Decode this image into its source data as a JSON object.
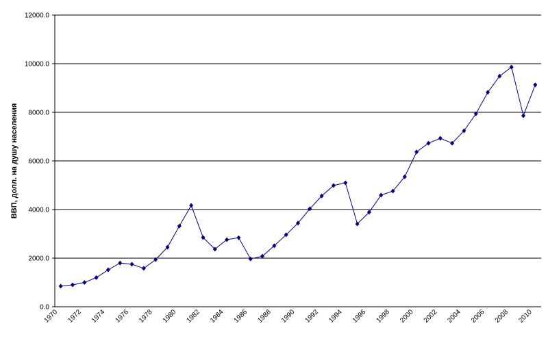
{
  "chart_data": {
    "type": "line",
    "y_label": "ВВП, долл. на душу населения",
    "categories": [
      "1970",
      null,
      "1972",
      null,
      "1974",
      null,
      "1976",
      null,
      "1978",
      null,
      "1980",
      null,
      "1982",
      null,
      "1984",
      null,
      "1986",
      null,
      "1988",
      null,
      "1990",
      null,
      "1992",
      null,
      "1994",
      null,
      "1996",
      null,
      "1998",
      null,
      "2000",
      null,
      "2002",
      null,
      "2004",
      null,
      "2006",
      null,
      "2008",
      null,
      "2010"
    ],
    "series": [
      {
        "color": "#000080",
        "values": [
          850,
          900,
          1000,
          1200,
          1520,
          1800,
          1750,
          1580,
          1940,
          2450,
          3320,
          4170,
          2850,
          2370,
          2760,
          2840,
          1970,
          2080,
          2510,
          2960,
          3440,
          4030,
          4560,
          4990,
          5100,
          3410,
          3890,
          4590,
          4760,
          5350,
          6370,
          6730,
          6930,
          6730,
          7240,
          7940,
          8820,
          9490,
          9860,
          7860,
          9130
        ]
      }
    ],
    "ylim": [
      0,
      12000
    ],
    "yticks": [
      {
        "value": 0,
        "label": "0.0"
      },
      {
        "value": 2000,
        "label": "2000.0"
      },
      {
        "value": 4000,
        "label": "4000.0"
      },
      {
        "value": 6000,
        "label": "6000.0"
      },
      {
        "value": 8000,
        "label": "8000.0"
      },
      {
        "value": 10000,
        "label": "10000.0"
      },
      {
        "value": 12000,
        "label": "12000.0"
      }
    ],
    "grid": true
  }
}
